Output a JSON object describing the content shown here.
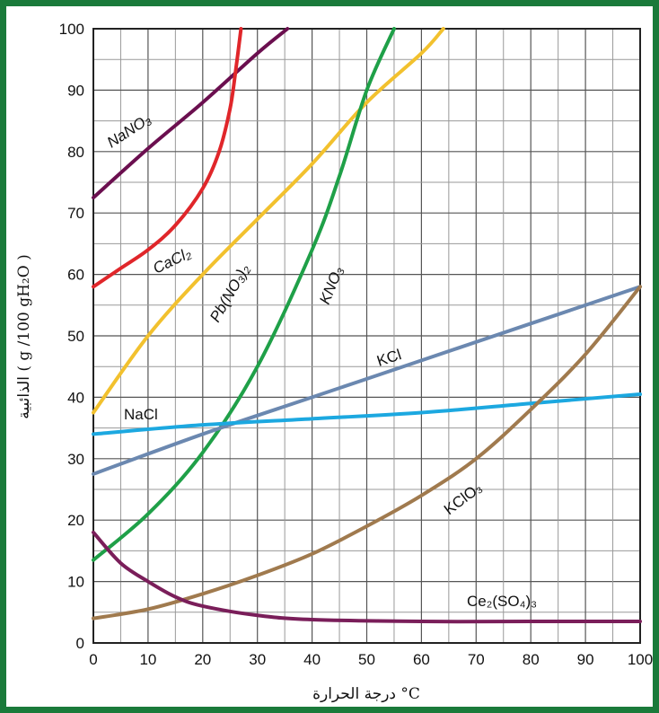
{
  "chart_data": {
    "type": "line",
    "xlabel": "درجة الحرارة °C",
    "ylabel": "الذائبية ( g /100 gH₂O )",
    "xlim": [
      0,
      100
    ],
    "ylim": [
      0,
      100
    ],
    "x_ticks": [
      "0",
      "10",
      "20",
      "30",
      "40",
      "50",
      "60",
      "70",
      "80",
      "90",
      "100"
    ],
    "y_ticks": [
      "0",
      "10",
      "20",
      "30",
      "40",
      "50",
      "60",
      "70",
      "80",
      "90",
      "100"
    ],
    "grid": true,
    "series": [
      {
        "name": "NaNO₃",
        "color": "#6b0f4f",
        "points": [
          [
            0,
            72.5
          ],
          [
            10,
            80.5
          ],
          [
            20,
            88
          ],
          [
            30,
            96
          ],
          [
            35.5,
            100
          ]
        ]
      },
      {
        "name": "CaCl₂",
        "color": "#e0262a",
        "points": [
          [
            0,
            58
          ],
          [
            5,
            61
          ],
          [
            10,
            64
          ],
          [
            15,
            68
          ],
          [
            20,
            74
          ],
          [
            23,
            80
          ],
          [
            25,
            87
          ],
          [
            26,
            93
          ],
          [
            27,
            100
          ]
        ]
      },
      {
        "name": "Pb(NO₃)₂",
        "color": "#f2c12e",
        "points": [
          [
            0,
            37.5
          ],
          [
            10,
            50
          ],
          [
            20,
            60
          ],
          [
            30,
            69
          ],
          [
            40,
            78
          ],
          [
            50,
            88
          ],
          [
            60,
            96
          ],
          [
            64,
            100
          ]
        ]
      },
      {
        "name": "KNO₃",
        "color": "#1fa048",
        "points": [
          [
            0,
            13.5
          ],
          [
            10,
            21
          ],
          [
            20,
            31
          ],
          [
            30,
            45
          ],
          [
            40,
            64
          ],
          [
            45,
            76
          ],
          [
            50,
            90
          ],
          [
            55,
            100
          ]
        ]
      },
      {
        "name": "KCl",
        "color": "#6b88b0",
        "points": [
          [
            0,
            27.5
          ],
          [
            20,
            34
          ],
          [
            40,
            40
          ],
          [
            60,
            46
          ],
          [
            80,
            52
          ],
          [
            100,
            58
          ]
        ]
      },
      {
        "name": "NaCl",
        "color": "#1ca8e0",
        "points": [
          [
            0,
            34
          ],
          [
            20,
            35.5
          ],
          [
            40,
            36.5
          ],
          [
            60,
            37.5
          ],
          [
            80,
            39
          ],
          [
            100,
            40.5
          ]
        ]
      },
      {
        "name": "KClO₃",
        "color": "#a07a4e",
        "points": [
          [
            0,
            4
          ],
          [
            10,
            5.5
          ],
          [
            20,
            8
          ],
          [
            30,
            11
          ],
          [
            40,
            14.5
          ],
          [
            50,
            19
          ],
          [
            60,
            24
          ],
          [
            70,
            30
          ],
          [
            80,
            38
          ],
          [
            90,
            47
          ],
          [
            100,
            58
          ]
        ]
      },
      {
        "name": "Ce₂(SO₄)₃",
        "color": "#7a1e5a",
        "points": [
          [
            0,
            18
          ],
          [
            5,
            13
          ],
          [
            10,
            10
          ],
          [
            15,
            7.5
          ],
          [
            20,
            6
          ],
          [
            30,
            4.5
          ],
          [
            40,
            3.8
          ],
          [
            60,
            3.5
          ],
          [
            80,
            3.5
          ],
          [
            100,
            3.5
          ]
        ]
      }
    ]
  },
  "labels": {
    "nano3": "NaNO₃",
    "cacl2": "CaCl₂",
    "pbno32": "Pb(NO₃)₂",
    "kno3": "KNO₃",
    "kcl": "KCl",
    "nacl": "NaCl",
    "kclo3": "KClO₃",
    "ce2so43": "Ce₂(SO₄)₃"
  }
}
